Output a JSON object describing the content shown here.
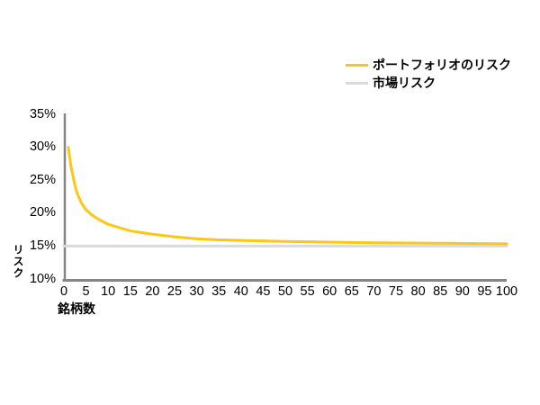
{
  "page": {
    "background": "#FFFFFF",
    "text_color": "#000000"
  },
  "legend": {
    "items": [
      {
        "id": "portfolio-risk",
        "label": "ポートフォリオのリスク",
        "color": "#FFC613"
      },
      {
        "id": "market-risk",
        "label": "市場リスク",
        "color": "#D9D9DE"
      }
    ]
  },
  "axes": {
    "x_label": "銘柄数",
    "y_label": "リスク",
    "x_tick_labels": [
      "0",
      "5",
      "10",
      "15",
      "20",
      "25",
      "30",
      "35",
      "40",
      "45",
      "50",
      "55",
      "60",
      "65",
      "70",
      "75",
      "80",
      "85",
      "90",
      "95",
      "100"
    ],
    "y_tick_labels": [
      "35%",
      "30%",
      "25%",
      "20%",
      "15%",
      "10%"
    ]
  },
  "chart_data": {
    "type": "line",
    "title": "",
    "xlabel": "銘柄数",
    "ylabel": "リスク",
    "xlim": [
      0,
      100
    ],
    "ylim_percent": [
      10,
      35
    ],
    "x_ticks": [
      0,
      5,
      10,
      15,
      20,
      25,
      30,
      35,
      40,
      45,
      50,
      55,
      60,
      65,
      70,
      75,
      80,
      85,
      90,
      95,
      100
    ],
    "y_ticks_percent": [
      35,
      30,
      25,
      20,
      15,
      10
    ],
    "grid": false,
    "legend_position": "top-right",
    "axis_color": "#858585",
    "series": [
      {
        "name": "ポートフォリオのリスク",
        "color": "#FFC613",
        "x": [
          1,
          1.5,
          2,
          2.5,
          3,
          3.5,
          4,
          5,
          6,
          7,
          8,
          10,
          12,
          15,
          20,
          25,
          30,
          35,
          40,
          50,
          60,
          70,
          80,
          90,
          100
        ],
        "y_percent": [
          30.0,
          27.5,
          25.8,
          24.2,
          23.0,
          22.2,
          21.5,
          20.5,
          19.9,
          19.4,
          19.0,
          18.3,
          17.9,
          17.3,
          16.8,
          16.4,
          16.1,
          15.95,
          15.85,
          15.7,
          15.6,
          15.5,
          15.45,
          15.4,
          15.35
        ]
      },
      {
        "name": "市場リスク",
        "color": "#D9D9DE",
        "x": [
          0,
          100
        ],
        "y_percent": [
          15,
          15
        ]
      }
    ]
  }
}
